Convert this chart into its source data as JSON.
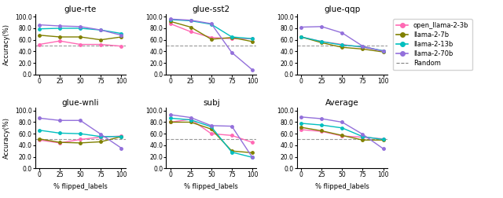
{
  "x": [
    0,
    25,
    50,
    75,
    100
  ],
  "models": [
    "open_llama-2-3b",
    "llama-2-7b",
    "llama-2-13b",
    "llama-2-70b"
  ],
  "colors": [
    "#FF69B4",
    "#808000",
    "#00BFBF",
    "#9370DB"
  ],
  "subplots": [
    {
      "title": "glue-rte",
      "random_line": 50.0,
      "data": {
        "open_llama-2-3b": [
          52,
          58,
          52,
          52,
          49
        ],
        "llama-2-7b": [
          68,
          65,
          65,
          60,
          65
        ],
        "llama-2-13b": [
          79,
          80,
          80,
          77,
          71
        ],
        "llama-2-70b": [
          86,
          84,
          83,
          77,
          68
        ]
      }
    },
    {
      "title": "glue-sst2",
      "random_line": 50.0,
      "data": {
        "open_llama-2-3b": [
          88,
          74,
          64,
          62,
          62
        ],
        "llama-2-7b": [
          92,
          82,
          61,
          64,
          57
        ],
        "llama-2-13b": [
          95,
          93,
          87,
          65,
          62
        ],
        "llama-2-70b": [
          96,
          94,
          88,
          38,
          8
        ]
      }
    },
    {
      "title": "glue-qqp",
      "random_line": 50.0,
      "data": {
        "open_llama-2-3b": [
          65,
          57,
          52,
          47,
          41
        ],
        "llama-2-7b": [
          65,
          55,
          47,
          44,
          39
        ],
        "llama-2-13b": [
          65,
          57,
          51,
          48,
          41
        ],
        "llama-2-70b": [
          82,
          83,
          72,
          49,
          40
        ]
      }
    },
    {
      "title": "glue-wnli",
      "random_line": 50.0,
      "data": {
        "open_llama-2-3b": [
          49,
          44,
          50,
          54,
          56
        ],
        "llama-2-7b": [
          51,
          45,
          44,
          46,
          55
        ],
        "llama-2-13b": [
          66,
          61,
          60,
          55,
          55
        ],
        "llama-2-70b": [
          87,
          83,
          83,
          59,
          35
        ]
      }
    },
    {
      "title": "subj",
      "random_line": 50.0,
      "data": {
        "open_llama-2-3b": [
          80,
          85,
          60,
          57,
          45
        ],
        "llama-2-7b": [
          80,
          80,
          68,
          30,
          27
        ],
        "llama-2-13b": [
          87,
          84,
          72,
          28,
          19
        ],
        "llama-2-70b": [
          93,
          88,
          74,
          73,
          19
        ]
      }
    },
    {
      "title": "Average",
      "random_line": 50.0,
      "data": {
        "open_llama-2-3b": [
          67,
          64,
          56,
          54,
          51
        ],
        "llama-2-7b": [
          71,
          65,
          57,
          49,
          49
        ],
        "llama-2-13b": [
          78,
          75,
          70,
          55,
          50
        ],
        "llama-2-70b": [
          89,
          86,
          80,
          59,
          34
        ]
      }
    }
  ],
  "xlabel": "% flipped_labels",
  "ylabel": "Accuracy(%)",
  "ylim": [
    0,
    105
  ],
  "yticks": [
    0.0,
    20.0,
    40.0,
    60.0,
    80.0,
    100.0
  ],
  "legend_labels": [
    "open_llama-2-3b",
    "llama-2-7b",
    "llama-2-13b",
    "llama-2-70b",
    "Random"
  ]
}
